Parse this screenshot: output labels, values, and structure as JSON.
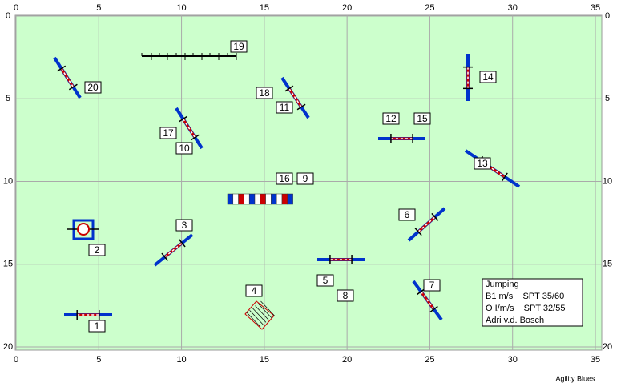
{
  "axes": {
    "xlim": [
      0,
      35
    ],
    "ylim": [
      0,
      20
    ],
    "xticks": [
      0,
      5,
      10,
      15,
      20,
      25,
      30,
      35
    ],
    "yticks": [
      0,
      5,
      10,
      15,
      20
    ]
  },
  "obstacles": {
    "labels": [
      "1",
      "2",
      "3",
      "4",
      "5",
      "6",
      "7",
      "8",
      "9",
      "10",
      "11",
      "12",
      "13",
      "14",
      "15",
      "16",
      "17",
      "18",
      "19",
      "20"
    ]
  },
  "info": {
    "lines": [
      "Jumping",
      "B1 m/s    SPT 35/60",
      "O I/m/s    SPT 32/55",
      "Adri v.d. Bosch"
    ]
  },
  "footer": "Agility Blues"
}
